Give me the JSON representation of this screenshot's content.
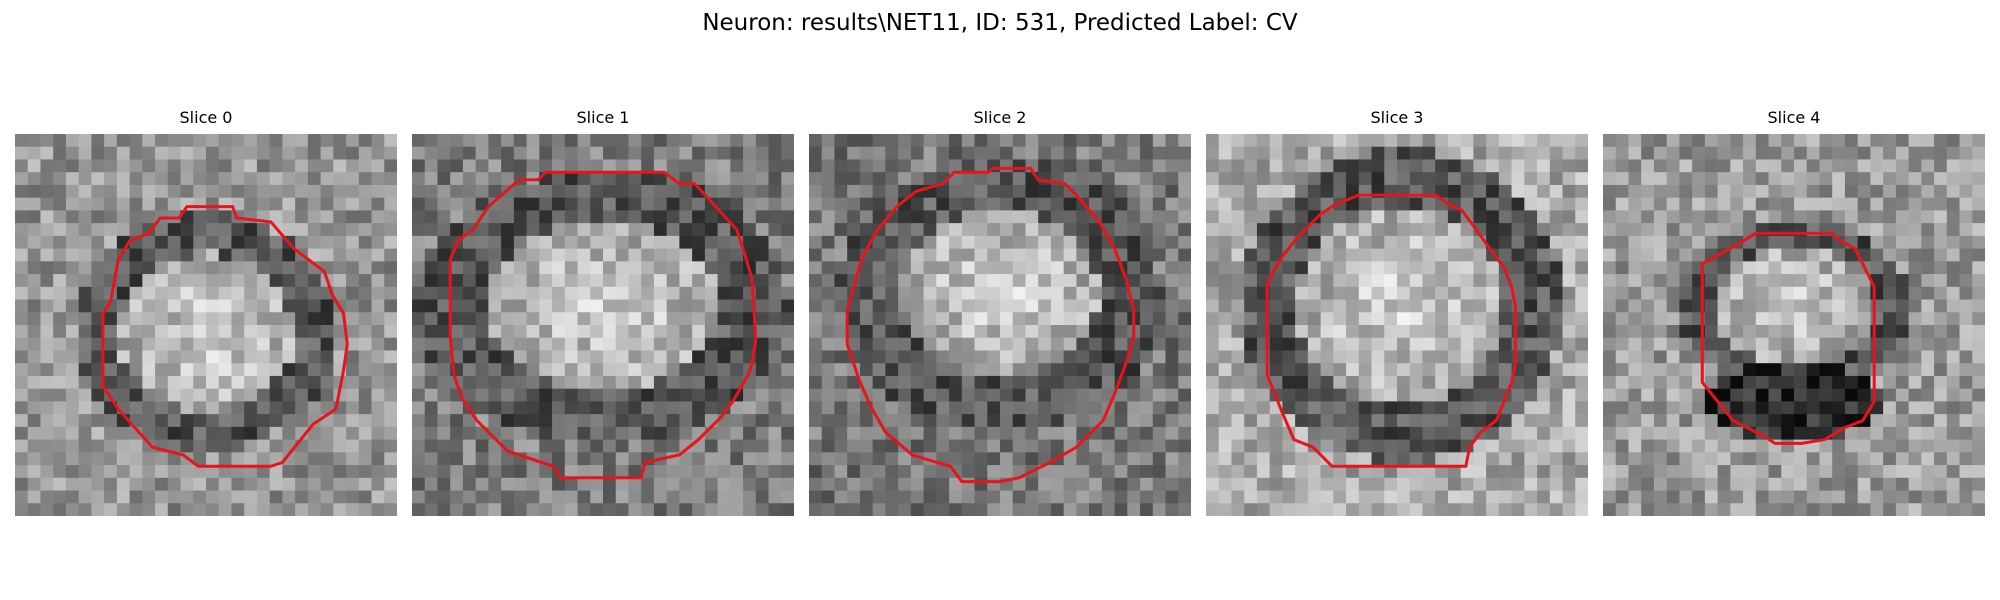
{
  "figure": {
    "title": "Neuron: results\\NET11, ID: 531, Predicted Label: CV"
  },
  "panels": [
    {
      "title": "Slice 0",
      "image_description": "grayscale microscopy patch with bright round neuron body and dark ring",
      "contour_color": "#e8141a"
    },
    {
      "title": "Slice 1",
      "image_description": "grayscale microscopy patch with large bright oval neuron body",
      "contour_color": "#e8141a"
    },
    {
      "title": "Slice 2",
      "image_description": "grayscale microscopy patch with bright oval neuron body",
      "contour_color": "#e8141a"
    },
    {
      "title": "Slice 3",
      "image_description": "grayscale microscopy patch with bright round neuron body",
      "contour_color": "#e8141a"
    },
    {
      "title": "Slice 4",
      "image_description": "grayscale microscopy patch with smaller neuron body and dark lower region",
      "contour_color": "#e8141a"
    }
  ],
  "colors": {
    "background": "#ffffff",
    "contour": "#e8141a"
  }
}
